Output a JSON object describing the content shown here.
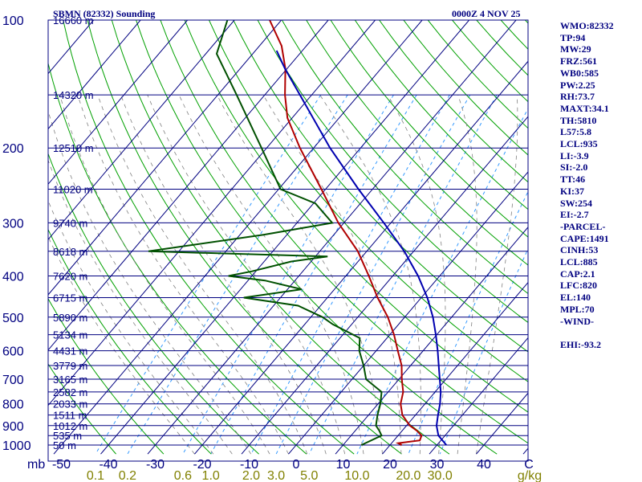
{
  "header": {
    "station": "SBMN (82332) Sounding",
    "time": "0000Z  4 NOV 25"
  },
  "indices": [
    "WMO:82332",
    "TP:94",
    "MW:29",
    "FRZ:561",
    "WB0:585",
    "PW:2.25",
    "RH:73.7",
    "MAXT:34.1",
    "TH:5810",
    "L57:5.8",
    "LCL:935",
    "LI:-3.9",
    "SI:-2.0",
    "TT:46",
    "KI:37",
    "SW:254",
    "EI:-2.7",
    "-PARCEL-",
    "CAPE:1491",
    "CINH:53",
    "LCL:885",
    "CAP:2.1",
    "LFC:820",
    "EL:140",
    "MPL:70",
    "-WIND-",
    "",
    "EHI:-93.2"
  ],
  "colors": {
    "frame": "#000080",
    "isobar": "#000080",
    "isotherm": "#000080",
    "dry_adiabat": "#00a000",
    "moist_adiabat": "#808080",
    "mixing_ratio": "#3399ff",
    "temperature": "#b00000",
    "dewpoint": "#005000",
    "parcel": "#0000b0",
    "mixing_label": "#808000"
  },
  "chart_data": {
    "type": "skew-t log-p",
    "title": "SBMN (82332) Sounding",
    "valid_time": "0000Z  4 NOV 25",
    "pressure_unit": "mb",
    "pressure_range": [
      1050,
      100
    ],
    "pressure_labels": [
      100,
      200,
      300,
      400,
      500,
      600,
      700,
      800,
      900,
      1000
    ],
    "temperature_labels": [
      -50,
      -40,
      -30,
      -20,
      -10,
      0,
      10,
      20,
      30,
      40
    ],
    "temperature_tail_label": "C",
    "mixing_ratio_unit": "g/kg",
    "mixing_ratio_labels": [
      0.1,
      0.2,
      0.6,
      1.0,
      2.0,
      3.0,
      5.0,
      10.0,
      20.0,
      30.0
    ],
    "mixing_ratio_label_text": [
      "0.1",
      "0.2",
      "0.6",
      "1.0",
      "2.0",
      "3.0",
      "5.0",
      "10.0",
      "20.0",
      "30.0"
    ],
    "height_labels": [
      {
        "p": 1000,
        "text": "50 m"
      },
      {
        "p": 950,
        "text": "535 m"
      },
      {
        "p": 900,
        "text": "1012 m"
      },
      {
        "p": 850,
        "text": "1511 m"
      },
      {
        "p": 800,
        "text": "2033 m"
      },
      {
        "p": 750,
        "text": "2582 m"
      },
      {
        "p": 700,
        "text": "3165 m"
      },
      {
        "p": 650,
        "text": "3779 m"
      },
      {
        "p": 600,
        "text": "4431 m"
      },
      {
        "p": 550,
        "text": "5134 m"
      },
      {
        "p": 500,
        "text": "5890 m"
      },
      {
        "p": 450,
        "text": "6715 m"
      },
      {
        "p": 400,
        "text": "7620 m"
      },
      {
        "p": 350,
        "text": "8618 m"
      },
      {
        "p": 300,
        "text": "9740 m"
      },
      {
        "p": 250,
        "text": "11020 m"
      },
      {
        "p": 200,
        "text": "12510 m"
      },
      {
        "p": 150,
        "text": "14320 m"
      },
      {
        "p": 100,
        "text": "16660 m"
      }
    ],
    "series": [
      {
        "name": "temperature",
        "points": [
          [
            1000,
            22.5
          ],
          [
            990,
            21.4
          ],
          [
            975,
            25.5
          ],
          [
            950,
            25.0
          ],
          [
            925,
            23.1
          ],
          [
            900,
            20.7
          ],
          [
            850,
            17.2
          ],
          [
            800,
            14.8
          ],
          [
            750,
            13.2
          ],
          [
            700,
            10.6
          ],
          [
            650,
            8.1
          ],
          [
            600,
            4.6
          ],
          [
            550,
            0.9
          ],
          [
            500,
            -3.6
          ],
          [
            450,
            -9.3
          ],
          [
            400,
            -15.1
          ],
          [
            350,
            -21.9
          ],
          [
            300,
            -31.2
          ],
          [
            250,
            -40.9
          ],
          [
            200,
            -52.9
          ],
          [
            170,
            -61.0
          ],
          [
            150,
            -65.7
          ],
          [
            130,
            -70.4
          ],
          [
            115,
            -75.3
          ],
          [
            100,
            -82.5
          ]
        ]
      },
      {
        "name": "dewpoint",
        "points": [
          [
            1000,
            13.9
          ],
          [
            950,
            16.5
          ],
          [
            925,
            15.1
          ],
          [
            900,
            13.5
          ],
          [
            850,
            11.9
          ],
          [
            800,
            10.5
          ],
          [
            750,
            8.6
          ],
          [
            700,
            3.0
          ],
          [
            650,
            0.0
          ],
          [
            600,
            -3.6
          ],
          [
            560,
            -5.8
          ],
          [
            520,
            -14.0
          ],
          [
            500,
            -17.5
          ],
          [
            470,
            -24.8
          ],
          [
            450,
            -37.8
          ],
          [
            430,
            -27.0
          ],
          [
            410,
            -36.4
          ],
          [
            400,
            -45.0
          ],
          [
            390,
            -40.8
          ],
          [
            370,
            -34.3
          ],
          [
            360,
            -27.4
          ],
          [
            350,
            -66.5
          ],
          [
            320,
            -45.0
          ],
          [
            300,
            -32.5
          ],
          [
            270,
            -39.6
          ],
          [
            250,
            -49.6
          ],
          [
            200,
            -61.1
          ],
          [
            150,
            -76.0
          ],
          [
            120,
            -87.7
          ],
          [
            100,
            -91.5
          ]
        ]
      },
      {
        "name": "parcel",
        "points": [
          [
            1000,
            32.0
          ],
          [
            950,
            28.6
          ],
          [
            900,
            26.4
          ],
          [
            850,
            24.8
          ],
          [
            800,
            23.2
          ],
          [
            750,
            21.2
          ],
          [
            700,
            18.7
          ],
          [
            650,
            16.0
          ],
          [
            600,
            13.1
          ],
          [
            550,
            9.8
          ],
          [
            500,
            6.0
          ],
          [
            450,
            1.3
          ],
          [
            400,
            -4.6
          ],
          [
            350,
            -12.0
          ],
          [
            300,
            -21.5
          ],
          [
            250,
            -33.0
          ],
          [
            200,
            -46.5
          ],
          [
            150,
            -62.5
          ],
          [
            130,
            -70.5
          ],
          [
            118,
            -75.5
          ]
        ]
      }
    ]
  }
}
